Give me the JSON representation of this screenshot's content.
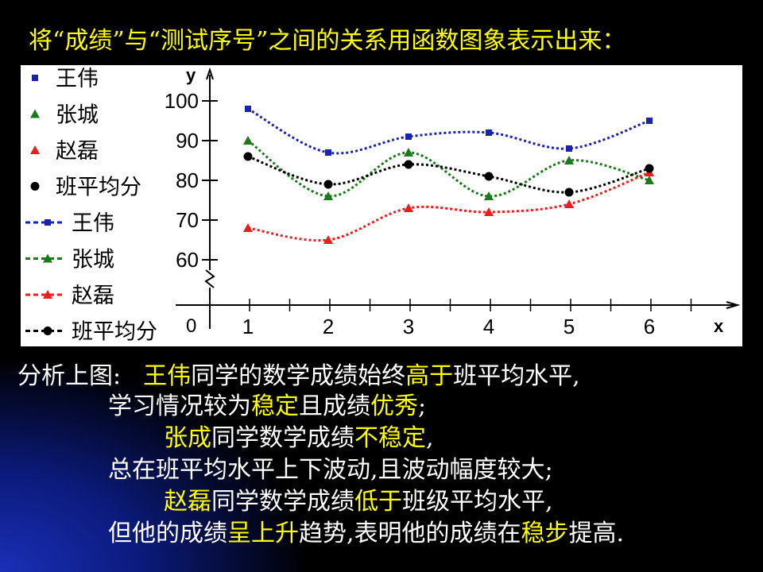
{
  "slide": {
    "title": "将“成绩”与“测试序号”之间的关系用函数图象表示出来：",
    "colors": {
      "title": "#ffff00",
      "text": "#ffffff",
      "highlight": "#ffff00"
    }
  },
  "chart_data": {
    "type": "line",
    "title": "",
    "xlabel": "x",
    "ylabel": "y",
    "origin_label": "0",
    "categories": [
      1,
      2,
      3,
      4,
      5,
      6
    ],
    "ylim": [
      50,
      105
    ],
    "yticks": [
      60,
      70,
      80,
      90,
      100
    ],
    "series": [
      {
        "name": "王伟",
        "color": "#1a22b0",
        "marker": "square",
        "values": [
          98,
          87,
          91,
          92,
          88,
          95
        ]
      },
      {
        "name": "张城",
        "color": "#1a7a1a",
        "marker": "triangle",
        "values": [
          90,
          76,
          87,
          76,
          85,
          80
        ]
      },
      {
        "name": "赵磊",
        "color": "#ee1c1c",
        "marker": "triangle",
        "values": [
          68,
          65,
          73,
          72,
          74,
          82
        ]
      },
      {
        "name": "班平均分",
        "color": "#000000",
        "marker": "circle",
        "values": [
          86,
          79,
          84,
          81,
          77,
          83
        ]
      }
    ]
  },
  "analysis": {
    "line1": [
      "分析上图:",
      "王伟",
      "同学的数学成绩始终",
      "高于",
      "班平均水平,"
    ],
    "line2": [
      "学习情况较为",
      "稳定",
      "且成绩",
      "优秀",
      ";"
    ],
    "line3": [
      "张成",
      "同学数学成绩",
      "不稳定",
      ","
    ],
    "line4": [
      "总在班平均水平上下波动,且波动幅度较大;"
    ],
    "line5": [
      "赵磊",
      "同学数学成绩",
      "低于",
      "班级平均水平,"
    ],
    "line6": [
      "但他的成绩",
      "呈上升",
      "趋势,表明他的成绩在",
      "稳步",
      "提高."
    ]
  }
}
